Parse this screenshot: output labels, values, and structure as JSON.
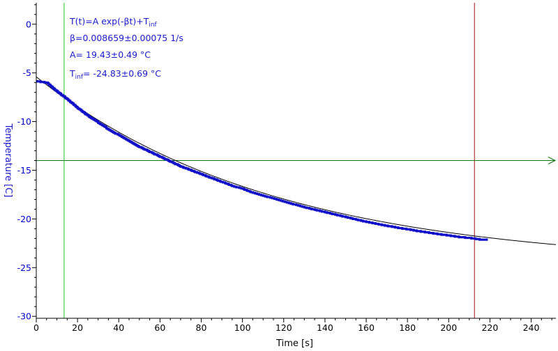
{
  "chart_data": {
    "type": "line",
    "xlabel": "Time [s]",
    "ylabel": "Temperature [C]",
    "xlim": [
      0,
      252
    ],
    "ylim": [
      -30.2,
      2.2
    ],
    "x_ticks": [
      0,
      20,
      40,
      60,
      80,
      100,
      120,
      140,
      160,
      180,
      200,
      220,
      240
    ],
    "y_ticks": [
      0,
      -5,
      -10,
      -15,
      -20,
      -25,
      -30
    ],
    "x_tick_labels": [
      "0",
      "20",
      "40",
      "60",
      "80",
      "100",
      "120",
      "140",
      "160",
      "180",
      "200",
      "220",
      "240"
    ],
    "y_tick_labels": [
      "0",
      "-5",
      "-10",
      "-15",
      "-20",
      "-25",
      "-30"
    ],
    "fit": {
      "A": 19.43,
      "beta": 0.008659,
      "T_inf": -24.83,
      "x_range": [
        0,
        252
      ]
    },
    "measured": {
      "x_range": [
        0,
        219
      ],
      "color": "#1010c8",
      "points": [
        [
          0,
          -5.85
        ],
        [
          5,
          -6.0
        ],
        [
          10,
          -6.9
        ],
        [
          15,
          -7.7
        ],
        [
          20,
          -8.6
        ],
        [
          25,
          -9.4
        ],
        [
          30,
          -10.1
        ],
        [
          35,
          -10.8
        ],
        [
          40,
          -11.4
        ],
        [
          45,
          -12.0
        ],
        [
          50,
          -12.6
        ],
        [
          55,
          -13.1
        ],
        [
          60,
          -13.6
        ],
        [
          65,
          -14.1
        ],
        [
          70,
          -14.6
        ],
        [
          75,
          -15.0
        ],
        [
          80,
          -15.4
        ],
        [
          85,
          -15.8
        ],
        [
          90,
          -16.2
        ],
        [
          95,
          -16.6
        ],
        [
          100,
          -16.9
        ],
        [
          105,
          -17.3
        ],
        [
          110,
          -17.6
        ],
        [
          115,
          -17.9
        ],
        [
          120,
          -18.2
        ],
        [
          125,
          -18.5
        ],
        [
          130,
          -18.8
        ],
        [
          135,
          -19.05
        ],
        [
          140,
          -19.3
        ],
        [
          145,
          -19.55
        ],
        [
          150,
          -19.8
        ],
        [
          155,
          -20.05
        ],
        [
          160,
          -20.3
        ],
        [
          165,
          -20.5
        ],
        [
          170,
          -20.7
        ],
        [
          175,
          -20.9
        ],
        [
          180,
          -21.05
        ],
        [
          185,
          -21.25
        ],
        [
          190,
          -21.4
        ],
        [
          195,
          -21.55
        ],
        [
          200,
          -21.7
        ],
        [
          205,
          -21.85
        ],
        [
          210,
          -21.95
        ],
        [
          215,
          -22.1
        ],
        [
          219,
          -22.15
        ]
      ]
    },
    "cursors": {
      "vertical_green_x": 13.5,
      "vertical_red_x": 212.5,
      "horizontal_green_y": -14.0
    },
    "annotations": [
      {
        "text": "T(t)=A exp(-βt)+T",
        "sub": "inf",
        "after": ""
      },
      {
        "text": "β=0.008659±0.00075 1/s",
        "sub": "",
        "after": ""
      },
      {
        "text": "A= 19.43±0.49 °C",
        "sub": "",
        "after": ""
      },
      {
        "text": "T",
        "sub": "inf",
        "after": "= -24.83±0.69 °C"
      }
    ],
    "colors": {
      "axis": "#000000",
      "ytick_label": "#0000cc",
      "ylabel": "#1a1acc",
      "annotation": "#1a1acc",
      "fit_line": "#000000",
      "green_cursor": "#22cc22",
      "horizontal_cursor": "#117711",
      "red_cursor": "#aa1111"
    },
    "grid": false
  }
}
